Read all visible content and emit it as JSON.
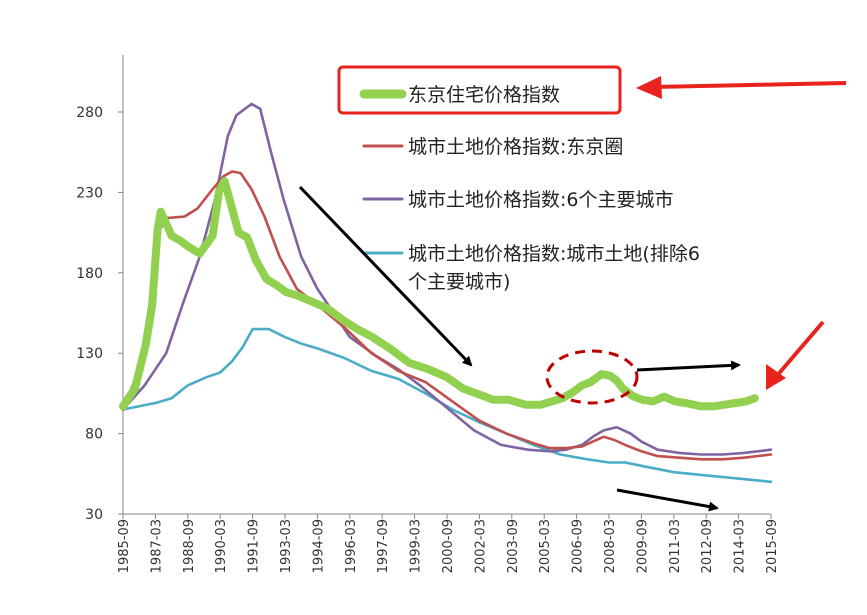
{
  "chart_data": {
    "type": "line",
    "title": "",
    "xlabel": "",
    "ylabel": "",
    "ylim": [
      30,
      310
    ],
    "yticks": [
      30,
      80,
      130,
      180,
      230,
      280
    ],
    "x_tick_labels": [
      "1985-09",
      "1987-03",
      "1988-09",
      "1990-03",
      "1991-09",
      "1993-03",
      "1994-09",
      "1996-03",
      "1997-09",
      "1999-03",
      "2000-09",
      "2002-03",
      "2003-09",
      "2005-03",
      "2006-09",
      "2008-03",
      "2009-09",
      "2011-03",
      "2012-09",
      "2014-03",
      "2015-09"
    ],
    "x_tick_years": [
      1985.75,
      1987.25,
      1988.75,
      1990.25,
      1991.75,
      1993.25,
      1994.75,
      1996.25,
      1997.75,
      1999.25,
      2000.75,
      2002.25,
      2003.75,
      2005.25,
      2006.75,
      2008.25,
      2009.75,
      2011.25,
      2012.75,
      2014.25,
      2015.75
    ],
    "xlim": [
      1985.75,
      2015.75
    ],
    "grid": false,
    "legend_position": "top-right",
    "series": [
      {
        "name": "东京住宅价格指数",
        "color": "#92d050",
        "style": "thick",
        "x": [
          1985.75,
          1986.3,
          1986.8,
          1987.1,
          1987.35,
          1987.5,
          1987.7,
          1988.0,
          1988.4,
          1988.8,
          1989.3,
          1989.9,
          1990.2,
          1990.45,
          1990.7,
          1991.1,
          1991.5,
          1991.9,
          1992.4,
          1992.9,
          1993.3,
          1993.8,
          1994.5,
          1995.2,
          1996.0,
          1996.6,
          1997.3,
          1998.1,
          1999.0,
          1999.9,
          2000.75,
          2001.5,
          2002.3,
          2002.9,
          2003.6,
          2004.4,
          2005.1,
          2005.6,
          2006.1,
          2006.6,
          2007.0,
          2007.4,
          2007.9,
          2008.3,
          2008.6,
          2008.9,
          2009.4,
          2009.8,
          2010.3,
          2010.8,
          2011.3,
          2011.8,
          2012.5,
          2013.1,
          2013.6,
          2014.1,
          2014.6,
          2015.0
        ],
        "y": [
          97,
          108,
          135,
          160,
          207,
          218,
          212,
          203,
          200,
          196,
          192,
          203,
          231,
          237,
          225,
          205,
          202,
          188,
          176,
          172,
          168,
          166,
          162,
          158,
          150,
          145,
          140,
          133,
          124,
          120,
          115,
          108,
          104,
          101,
          101,
          98,
          98,
          100,
          102,
          106,
          110,
          112,
          117,
          116,
          113,
          108,
          103,
          101,
          100,
          103,
          100,
          99,
          97,
          97,
          98,
          99,
          100,
          102
        ]
      },
      {
        "name": "城市土地价格指数:东京圈",
        "color": "#c0504d",
        "style": "normal",
        "x": [
          1985.75,
          1986.5,
          1987.0,
          1987.3,
          1987.8,
          1988.6,
          1989.2,
          1989.9,
          1990.4,
          1990.8,
          1991.2,
          1991.7,
          1992.3,
          1993.0,
          1993.8,
          1994.75,
          1996.0,
          1997.25,
          1998.5,
          1999.75,
          2001.0,
          2002.25,
          2003.5,
          2004.75,
          2005.5,
          2006.25,
          2007.0,
          2007.5,
          2008.0,
          2008.5,
          2009.0,
          2009.75,
          2010.5,
          2011.5,
          2012.5,
          2013.5,
          2014.5,
          2015.75
        ],
        "y": [
          95,
          120,
          162,
          204,
          214,
          215,
          220,
          232,
          240,
          243,
          242,
          232,
          215,
          190,
          170,
          160,
          146,
          130,
          119,
          112,
          100,
          88,
          80,
          74,
          71,
          71,
          72,
          75,
          78,
          76,
          73,
          69,
          66,
          65,
          64,
          64,
          65,
          67
        ]
      },
      {
        "name": "城市土地价格指数:6个主要城市",
        "color": "#8064a2",
        "style": "normal",
        "x": [
          1985.75,
          1986.75,
          1987.75,
          1988.5,
          1989.3,
          1990.0,
          1990.6,
          1991.0,
          1991.7,
          1992.1,
          1992.6,
          1993.2,
          1994.0,
          1994.75,
          1995.5,
          1996.25,
          1997.5,
          1998.5,
          1999.5,
          2000.75,
          2002.0,
          2003.25,
          2004.5,
          2005.5,
          2006.25,
          2007.0,
          2007.5,
          2008.0,
          2008.6,
          2009.25,
          2009.75,
          2010.5,
          2011.5,
          2012.5,
          2013.5,
          2014.5,
          2015.75
        ],
        "y": [
          95,
          110,
          130,
          160,
          190,
          225,
          265,
          278,
          285,
          282,
          255,
          225,
          190,
          170,
          155,
          140,
          128,
          120,
          110,
          96,
          82,
          73,
          70,
          69,
          70,
          73,
          78,
          82,
          84,
          80,
          75,
          70,
          68,
          67,
          67,
          68,
          70
        ]
      },
      {
        "name": "城市土地价格指数:城市土地(排除6个主要城市)",
        "color": "#4bacc6",
        "style": "normal",
        "x": [
          1985.75,
          1987.25,
          1988.0,
          1988.75,
          1989.6,
          1990.25,
          1990.8,
          1991.3,
          1991.75,
          1992.5,
          1993.25,
          1994.0,
          1994.75,
          1996.0,
          1997.25,
          1998.5,
          1999.75,
          2001.0,
          2002.25,
          2003.5,
          2004.75,
          2006.0,
          2007.25,
          2008.25,
          2009.0,
          2009.75,
          2011.25,
          2012.75,
          2014.25,
          2015.0,
          2015.75
        ],
        "y": [
          95,
          99,
          102,
          110,
          115,
          118,
          125,
          134,
          145,
          145,
          140,
          136,
          133,
          127,
          119,
          114,
          105,
          95,
          87,
          80,
          73,
          67,
          64,
          62,
          62,
          60,
          56,
          54,
          52,
          51,
          50
        ]
      }
    ],
    "legend_entries": [
      {
        "line1": "东京住宅价格指数",
        "line2": "",
        "color": "#92d050",
        "style": "thick"
      },
      {
        "line1": "城市土地价格指数:东京圈",
        "line2": "",
        "color": "#c0504d",
        "style": "normal"
      },
      {
        "line1": "城市土地价格指数:6个主要城市",
        "line2": "",
        "color": "#8064a2",
        "style": "normal"
      },
      {
        "line1": "城市土地价格指数:城市土地(排除6",
        "line2": "个主要城市)",
        "color": "#4bacc6",
        "style": "normal"
      }
    ],
    "annotation_colors": {
      "red": "#e8231e",
      "black": "#000000",
      "dashed_ellipse": "#c00000"
    }
  }
}
